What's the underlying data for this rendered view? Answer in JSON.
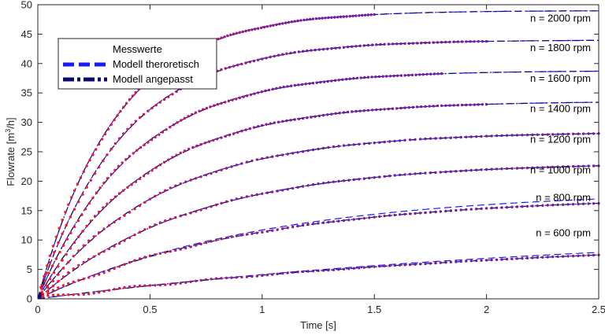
{
  "chart_data": {
    "type": "line",
    "xlabel": "Time [s]",
    "ylabel_prefix": "Flowrate [m",
    "ylabel_sup": "3",
    "ylabel_suffix": "/h]",
    "xlim": [
      0,
      2.5
    ],
    "ylim": [
      0,
      50
    ],
    "x_ticks": [
      0,
      0.5,
      1,
      1.5,
      2,
      2.5
    ],
    "x_tick_labels": [
      "0",
      "0.5",
      "1",
      "1.5",
      "2",
      "2.5"
    ],
    "y_ticks": [
      0,
      5,
      10,
      15,
      20,
      25,
      30,
      35,
      40,
      45,
      50
    ],
    "y_tick_labels": [
      "0",
      "5",
      "10",
      "15",
      "20",
      "25",
      "30",
      "35",
      "40",
      "45",
      "50"
    ],
    "grid": false,
    "legend_position": "top-left",
    "legend": [
      {
        "label": "Messwerte",
        "style": "measured"
      },
      {
        "label": "Modell theroretisch",
        "style": "dashed"
      },
      {
        "label": "Modell angepasst",
        "style": "dashdot"
      }
    ],
    "colors": {
      "measured_start": "#ff1a1a",
      "measured_end": "#7a1a9e",
      "theory": "#1a1aff",
      "fitted": "#0a0a6e"
    },
    "series": [
      {
        "label": "n = 2000 rpm",
        "steady": 49.0,
        "tau": 0.35,
        "t_end": 1.5,
        "theory_steady": 49.0,
        "theory_tau": 0.35
      },
      {
        "label": "n = 1800 rpm",
        "steady": 44.0,
        "tau": 0.38,
        "t_end": 2.0,
        "theory_steady": 44.0,
        "theory_tau": 0.38
      },
      {
        "label": "n = 1600 rpm",
        "steady": 38.8,
        "tau": 0.42,
        "t_end": 1.8,
        "theory_steady": 38.8,
        "theory_tau": 0.42
      },
      {
        "label": "n = 1400 rpm",
        "steady": 33.6,
        "tau": 0.48,
        "t_end": 2.0,
        "theory_steady": 33.6,
        "theory_tau": 0.48
      },
      {
        "label": "n = 1200 rpm",
        "steady": 28.4,
        "tau": 0.55,
        "t_end": 2.5,
        "theory_steady": 28.4,
        "theory_tau": 0.55
      },
      {
        "label": "n = 1000 rpm",
        "steady": 23.2,
        "tau": 0.68,
        "t_end": 2.5,
        "theory_steady": 23.2,
        "theory_tau": 0.68
      },
      {
        "label": "n = 800 rpm",
        "steady": 17.5,
        "tau": 0.95,
        "t_end": 2.5,
        "theory_steady": 18.5,
        "theory_tau": 1.0
      },
      {
        "label": "n = 600 rpm",
        "steady": 11.0,
        "tau": 2.2,
        "t_end": 2.5,
        "theory_steady": 12.5,
        "theory_tau": 2.5
      }
    ]
  }
}
